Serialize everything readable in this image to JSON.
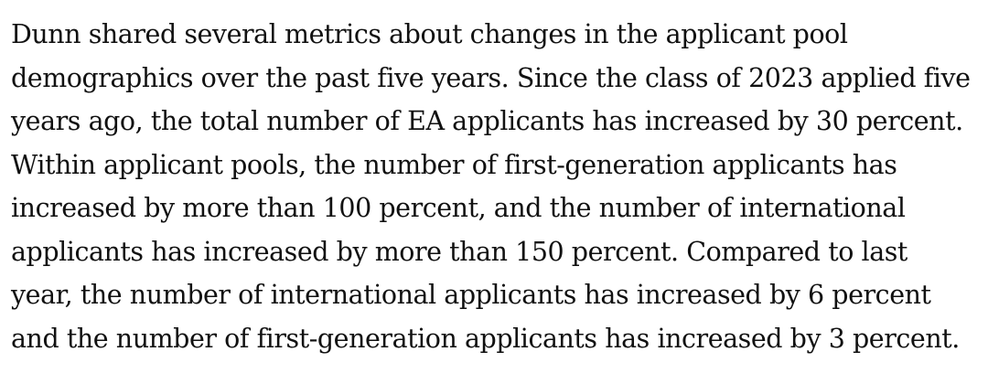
{
  "article": {
    "paragraph_lines": [
      "Dunn shared several metrics about changes in the applicant pool",
      "demographics over the past five years. Since the class of 2023 applied five",
      "years ago, the total number of EA applicants has increased by 30 percent.",
      "Within applicant pools, the number of first-generation applicants has",
      "increased by more than 100 percent, and the number of international",
      "applicants has increased by more than 150 percent. Compared to last",
      "year, the number of international applicants has increased by 6 percent",
      "and the number of first-generation applicants has increased by 3 percent."
    ]
  }
}
